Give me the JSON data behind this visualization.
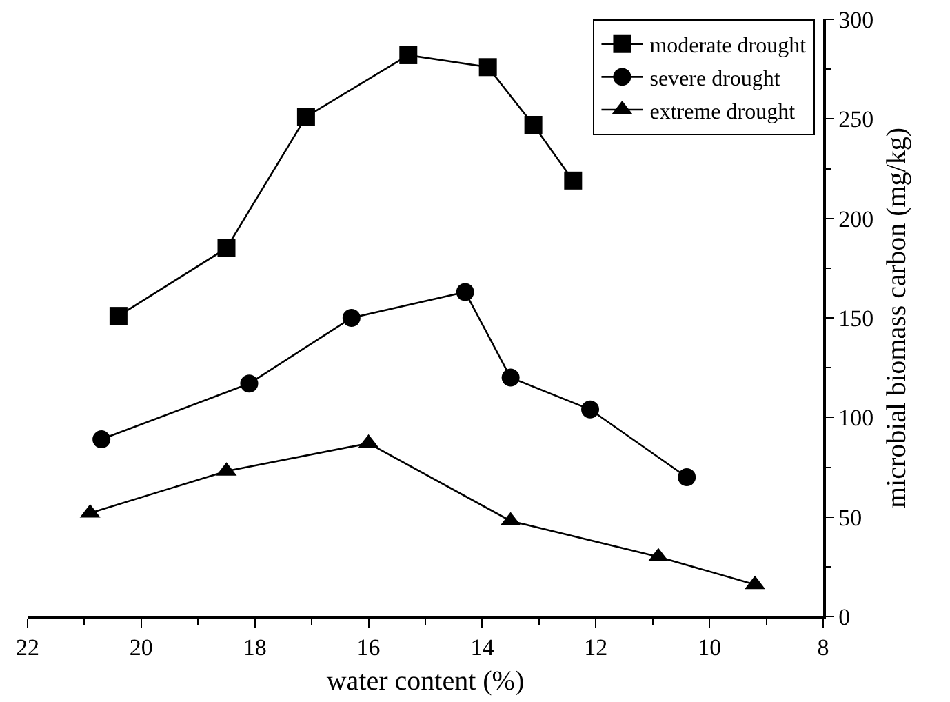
{
  "chart_data": {
    "type": "line",
    "xlabel": "water content (%)",
    "ylabel": "microbial biomass carbon (mg/kg)",
    "xlim": [
      22,
      8
    ],
    "xticks": [
      22,
      20,
      18,
      16,
      14,
      12,
      10,
      8
    ],
    "ylim": [
      0,
      300
    ],
    "yticks": [
      0,
      50,
      100,
      150,
      200,
      250,
      300
    ],
    "grid": false,
    "legend": "top right",
    "line_style": "solid",
    "series": [
      {
        "name": "moderate drought",
        "color": "#000000",
        "marker": "square",
        "x": [
          20.4,
          18.5,
          17.1,
          15.3,
          13.9,
          13.1,
          12.4
        ],
        "values": [
          151,
          185,
          251,
          282,
          276,
          247,
          219
        ]
      },
      {
        "name": "severe drought",
        "color": "#000000",
        "marker": "circle",
        "x": [
          20.7,
          18.1,
          16.3,
          14.3,
          13.5,
          12.1,
          10.4
        ],
        "values": [
          89,
          117,
          150,
          163,
          120,
          104,
          70
        ]
      },
      {
        "name": "extreme drought",
        "color": "#000000",
        "marker": "triangle",
        "x": [
          20.9,
          18.5,
          16.0,
          13.5,
          10.9,
          9.2
        ],
        "values": [
          52,
          73,
          87,
          48,
          30,
          16
        ]
      }
    ]
  }
}
